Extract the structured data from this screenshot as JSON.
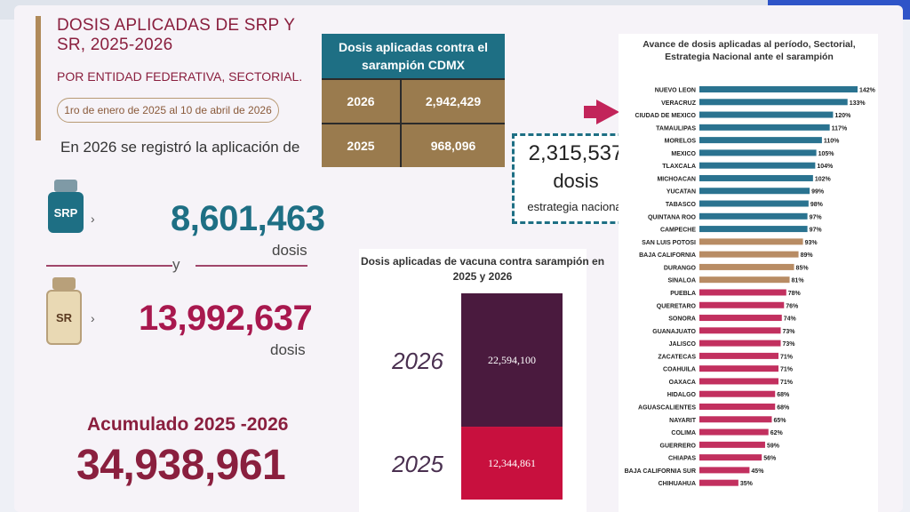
{
  "header": {
    "title_line1": "DOSIS APLICADAS DE SRP Y",
    "title_line2": "SR, 2025-2026",
    "subtitle": "POR ENTIDAD FEDERATIVA, SECTORIAL.",
    "date_range": "1ro de enero de 2025  al 10 de abril de 2026"
  },
  "summary": {
    "intro": "En 2026 se registró la aplicación de",
    "srp_label": "SRP",
    "srp_value": "8,601,463",
    "srp_unit": "dosis",
    "connector": "y",
    "sr_label": "SR",
    "sr_value": "13,992,637",
    "sr_unit": "dosis",
    "acumulado_label": "Acumulado 2025 -2026",
    "acumulado_value": "34,938,961"
  },
  "cdmx_table": {
    "title_line1": "Dosis aplicadas contra el",
    "title_line2": "sarampión CDMX",
    "rows": [
      {
        "year": "2026",
        "value": "2,942,429"
      },
      {
        "year": "2025",
        "value": "968,096"
      }
    ]
  },
  "national_box": {
    "value": "2,315,537",
    "unit": "dosis",
    "label": "estrategia nacional"
  },
  "colors": {
    "teal": "#1e6f84",
    "brown": "#9a7b4e",
    "wine": "#8a1f3e",
    "magenta": "#c2245a",
    "plum": "#4a1a3e",
    "bar_blue": "#2a7390",
    "bar_tan": "#b88c64",
    "bar_pink": "#c2305f"
  },
  "chart_data": [
    {
      "type": "bar",
      "orientation": "stacked-vertical",
      "title": "Dosis aplicadas de vacuna contra sarampión en 2025 y 2026",
      "categories": [
        "2026",
        "2025"
      ],
      "values": [
        22594100,
        12344861
      ],
      "value_labels": [
        "22,594,100",
        "12,344,861"
      ],
      "colors": [
        "#4a1a3e",
        "#c8103e"
      ]
    },
    {
      "type": "bar",
      "orientation": "horizontal",
      "title_line1": "Avance de dosis aplicadas al período, Sectorial,",
      "title_line2": "Estrategia Nacional ante el sarampión",
      "categories": [
        "NUEVO LEON",
        "VERACRUZ",
        "CIUDAD DE MEXICO",
        "TAMAULIPAS",
        "MORELOS",
        "MEXICO",
        "TLAXCALA",
        "MICHOACAN",
        "YUCATAN",
        "TABASCO",
        "QUINTANA ROO",
        "CAMPECHE",
        "SAN LUIS POTOSI",
        "BAJA CALIFORNIA",
        "DURANGO",
        "SINALOA",
        "PUEBLA",
        "QUERETARO",
        "SONORA",
        "GUANAJUATO",
        "JALISCO",
        "ZACATECAS",
        "COAHUILA",
        "OAXACA",
        "HIDALGO",
        "AGUASCALIENTES",
        "NAYARIT",
        "COLIMA",
        "GUERRERO",
        "CHIAPAS",
        "BAJA CALIFORNIA SUR",
        "CHIHUAHUA"
      ],
      "values": [
        142,
        133,
        120,
        117,
        110,
        105,
        104,
        102,
        99,
        98,
        97,
        97,
        93,
        89,
        85,
        81,
        78,
        76,
        74,
        73,
        73,
        71,
        71,
        71,
        68,
        68,
        65,
        62,
        59,
        56,
        45,
        35
      ],
      "value_labels": [
        "142%",
        "133%",
        "120%",
        "117%",
        "110%",
        "105%",
        "104%",
        "102%",
        "99%",
        "98%",
        "97%",
        "97%",
        "93%",
        "89%",
        "85%",
        "81%",
        "78%",
        "76%",
        "74%",
        "73%",
        "73%",
        "71%",
        "71%",
        "71%",
        "68%",
        "68%",
        "65%",
        "62%",
        "59%",
        "56%",
        "45%",
        "35%"
      ],
      "bands": [
        "blue",
        "blue",
        "blue",
        "blue",
        "blue",
        "blue",
        "blue",
        "blue",
        "blue",
        "blue",
        "blue",
        "blue",
        "tan",
        "tan",
        "tan",
        "tan",
        "pink",
        "pink",
        "pink",
        "pink",
        "pink",
        "pink",
        "pink",
        "pink",
        "pink",
        "pink",
        "pink",
        "pink",
        "pink",
        "pink",
        "pink",
        "pink"
      ],
      "xlim": [
        0,
        142
      ]
    }
  ]
}
